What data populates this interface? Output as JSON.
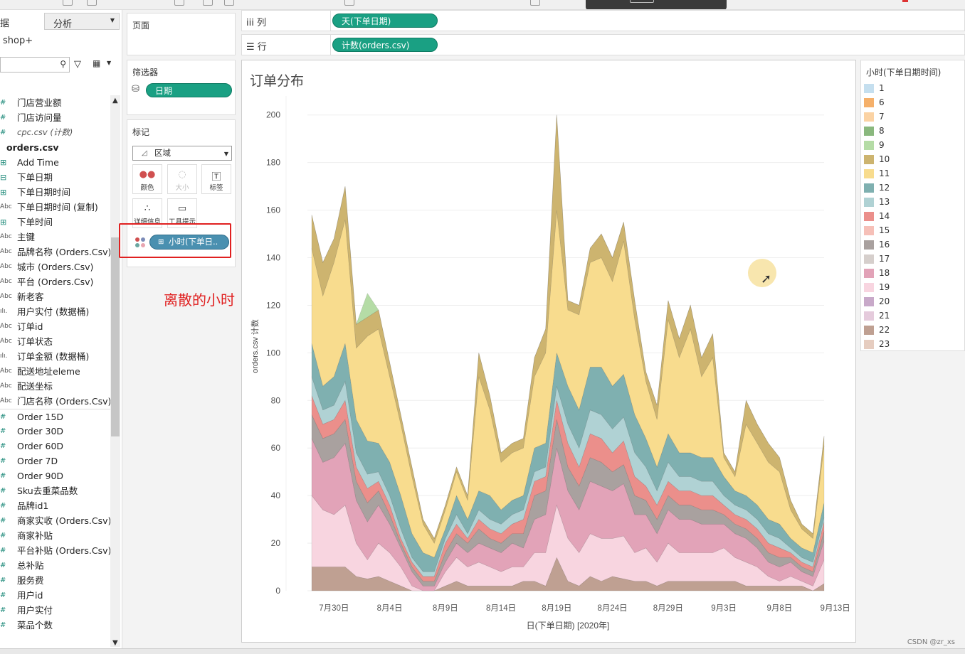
{
  "datapane": {
    "tab_data": "据",
    "tab_analysis": "分析",
    "datasource": "shop+",
    "fields": [
      {
        "icon": "#",
        "kind": "measure",
        "label": "门店营业额"
      },
      {
        "icon": "#",
        "kind": "measure",
        "label": "门店访问量"
      },
      {
        "icon": "#",
        "kind": "italic",
        "label": "cpc.csv (计数)"
      },
      {
        "icon": "",
        "kind": "header",
        "label": "orders.csv"
      },
      {
        "icon": "⊞",
        "kind": "dim",
        "label": "Add Time"
      },
      {
        "icon": "⊟",
        "kind": "dim",
        "label": "下单日期"
      },
      {
        "icon": "⊞",
        "kind": "dim",
        "label": "下单日期时间"
      },
      {
        "icon": "Abc",
        "kind": "abc",
        "label": "下单日期时间 (复制)"
      },
      {
        "icon": "⊞",
        "kind": "dim",
        "label": "下单时间"
      },
      {
        "icon": "Abc",
        "kind": "abc",
        "label": "主键"
      },
      {
        "icon": "Abc",
        "kind": "abc",
        "label": "品牌名称 (Orders.Csv)"
      },
      {
        "icon": "Abc",
        "kind": "abc",
        "label": "城市 (Orders.Csv)"
      },
      {
        "icon": "Abc",
        "kind": "abc",
        "label": "平台 (Orders.Csv)"
      },
      {
        "icon": "Abc",
        "kind": "abc",
        "label": "新老客"
      },
      {
        "icon": "ılı.",
        "kind": "abc",
        "label": "用户实付 (数据桶)"
      },
      {
        "icon": "Abc",
        "kind": "abc",
        "label": "订单id"
      },
      {
        "icon": "Abc",
        "kind": "abc",
        "label": "订单状态"
      },
      {
        "icon": "ılı.",
        "kind": "abc",
        "label": "订单金额 (数据桶)"
      },
      {
        "icon": "Abc",
        "kind": "abc",
        "label": "配送地址eleme"
      },
      {
        "icon": "Abc",
        "kind": "abc",
        "label": "配送坐标"
      },
      {
        "icon": "Abc",
        "kind": "abc",
        "label": "门店名称 (Orders.Csv)"
      },
      {
        "icon": "#",
        "kind": "measure-sep",
        "label": "Order 15D"
      },
      {
        "icon": "#",
        "kind": "measure",
        "label": "Order 30D"
      },
      {
        "icon": "#",
        "kind": "measure",
        "label": "Order 60D"
      },
      {
        "icon": "#",
        "kind": "measure",
        "label": "Order 7D"
      },
      {
        "icon": "#",
        "kind": "measure",
        "label": "Order 90D"
      },
      {
        "icon": "#",
        "kind": "measure",
        "label": "Sku去重菜品数"
      },
      {
        "icon": "#",
        "kind": "measure",
        "label": "品牌id1"
      },
      {
        "icon": "#",
        "kind": "measure",
        "label": "商家实收 (Orders.Csv)"
      },
      {
        "icon": "#",
        "kind": "measure",
        "label": "商家补贴"
      },
      {
        "icon": "#",
        "kind": "measure",
        "label": "平台补贴 (Orders.Csv)"
      },
      {
        "icon": "#",
        "kind": "measure",
        "label": "总补贴"
      },
      {
        "icon": "#",
        "kind": "measure",
        "label": "服务费"
      },
      {
        "icon": "#",
        "kind": "measure",
        "label": "用户id"
      },
      {
        "icon": "#",
        "kind": "measure",
        "label": "用户实付"
      },
      {
        "icon": "#",
        "kind": "measure",
        "label": "菜品个数"
      }
    ]
  },
  "shelves": {
    "pages_title": "页面",
    "filters_title": "筛选器",
    "filter_pill": "日期",
    "marks_title": "标记",
    "mark_type": "区域",
    "mark_buttons": {
      "color": "颜色",
      "size": "大小",
      "label": "标签",
      "detail": "详细信息",
      "tooltip": "工具提示"
    },
    "color_pill": "小时(下单日..",
    "annotation": "离散的小时",
    "columns_label": "列",
    "columns_pill": "天(下单日期)",
    "rows_label": "行",
    "rows_pill": "计数(orders.csv)"
  },
  "view": {
    "title": "订单分布",
    "ylabel": "orders.csv 计数",
    "xlabel": "日(下单日期) [2020年]",
    "yticks": [
      "0",
      "20",
      "40",
      "60",
      "80",
      "100",
      "120",
      "140",
      "160",
      "180",
      "200"
    ],
    "xticks": [
      "7月30日",
      "8月4日",
      "8月9日",
      "8月14日",
      "8月19日",
      "8月24日",
      "8月29日",
      "9月3日",
      "9月8日",
      "9月13日"
    ]
  },
  "legend": {
    "title": "小时(下单日期时间)",
    "items": [
      {
        "label": "1",
        "color": "#c5dfef"
      },
      {
        "label": "6",
        "color": "#f5b06a"
      },
      {
        "label": "7",
        "color": "#fbd3a4"
      },
      {
        "label": "8",
        "color": "#8ab87e"
      },
      {
        "label": "9",
        "color": "#b5dca6"
      },
      {
        "label": "10",
        "color": "#cdb46f"
      },
      {
        "label": "11",
        "color": "#f8dc8e"
      },
      {
        "label": "12",
        "color": "#7fb0b0"
      },
      {
        "label": "13",
        "color": "#b0d2d4"
      },
      {
        "label": "14",
        "color": "#eb8f8b"
      },
      {
        "label": "15",
        "color": "#f6c0b8"
      },
      {
        "label": "16",
        "color": "#a9a19f"
      },
      {
        "label": "17",
        "color": "#d6cfcc"
      },
      {
        "label": "18",
        "color": "#e2a3b8"
      },
      {
        "label": "19",
        "color": "#f8d5e0"
      },
      {
        "label": "20",
        "color": "#c8a9c9"
      },
      {
        "label": "21",
        "color": "#e5cbdc"
      },
      {
        "label": "22",
        "color": "#bfa092"
      },
      {
        "label": "23",
        "color": "#e6cdc0"
      }
    ]
  },
  "chart_data": {
    "type": "area",
    "title": "订单分布",
    "xlabel": "日(下单日期) [2020年]",
    "ylabel": "orders.csv 计数",
    "ylim": [
      0,
      205
    ],
    "x": [
      "7月28日",
      "7月29日",
      "7月30日",
      "7月31日",
      "8月1日",
      "8月2日",
      "8月3日",
      "8月4日",
      "8月5日",
      "8月6日",
      "8月7日",
      "8月8日",
      "8月9日",
      "8月10日",
      "8月11日",
      "8月12日",
      "8月13日",
      "8月14日",
      "8月15日",
      "8月16日",
      "8月17日",
      "8月18日",
      "8月19日",
      "8月20日",
      "8月21日",
      "8月22日",
      "8月23日",
      "8月24日",
      "8月25日",
      "8月26日",
      "8月27日",
      "8月28日",
      "8月29日",
      "8月30日",
      "8月31日",
      "9月1日",
      "9月2日",
      "9月3日",
      "9月4日",
      "9月5日",
      "9月6日",
      "9月7日",
      "9月8日",
      "9月9日",
      "9月10日",
      "9月11日",
      "9月12日",
      "9月13日",
      "9月14日"
    ],
    "stack_totals": [
      158,
      138,
      148,
      170,
      112,
      125,
      118,
      96,
      74,
      52,
      30,
      22,
      36,
      52,
      40,
      100,
      82,
      58,
      62,
      64,
      98,
      110,
      200,
      122,
      120,
      140,
      150,
      140,
      155,
      122,
      92,
      78,
      122,
      106,
      120,
      98,
      108,
      58,
      50,
      80,
      70,
      62,
      56,
      38,
      28,
      24,
      65,
      0,
      0
    ],
    "series": [
      {
        "name": "10",
        "values": [
          14,
          14,
          10,
          14,
          10,
          8,
          8,
          6,
          4,
          4,
          2,
          2,
          2,
          2,
          2,
          10,
          6,
          4,
          4,
          4,
          8,
          10,
          40,
          4,
          4,
          6,
          10,
          10,
          8,
          8,
          4,
          6,
          8,
          8,
          10,
          8,
          10,
          2,
          2,
          10,
          8,
          8,
          6,
          4,
          2,
          2,
          4,
          0,
          0
        ]
      },
      {
        "name": "11",
        "values": [
          40,
          38,
          48,
          52,
          30,
          44,
          48,
          36,
          30,
          24,
          12,
          6,
          8,
          10,
          8,
          48,
          36,
          20,
          20,
          20,
          30,
          38,
          60,
          32,
          40,
          44,
          46,
          44,
          56,
          40,
          24,
          20,
          48,
          40,
          52,
          34,
          42,
          8,
          6,
          30,
          26,
          24,
          22,
          12,
          8,
          6,
          24,
          0,
          0
        ]
      },
      {
        "name": "12",
        "values": [
          14,
          10,
          12,
          16,
          14,
          14,
          12,
          14,
          14,
          10,
          8,
          6,
          4,
          8,
          6,
          8,
          10,
          6,
          6,
          6,
          10,
          10,
          14,
          16,
          16,
          18,
          20,
          18,
          18,
          16,
          12,
          10,
          12,
          10,
          10,
          10,
          10,
          8,
          6,
          6,
          6,
          6,
          6,
          4,
          4,
          4,
          6,
          0,
          0
        ]
      },
      {
        "name": "13",
        "values": [
          8,
          6,
          6,
          8,
          6,
          6,
          4,
          4,
          4,
          2,
          2,
          2,
          2,
          4,
          2,
          4,
          4,
          4,
          4,
          4,
          4,
          4,
          6,
          8,
          8,
          10,
          10,
          10,
          10,
          10,
          8,
          6,
          8,
          6,
          6,
          6,
          6,
          4,
          4,
          4,
          4,
          4,
          4,
          2,
          2,
          2,
          2,
          0,
          0
        ]
      },
      {
        "name": "14",
        "values": [
          8,
          6,
          6,
          8,
          6,
          6,
          4,
          4,
          2,
          2,
          2,
          2,
          4,
          4,
          2,
          4,
          4,
          4,
          4,
          6,
          6,
          6,
          8,
          10,
          8,
          10,
          10,
          8,
          10,
          8,
          6,
          6,
          6,
          6,
          6,
          6,
          6,
          4,
          4,
          4,
          4,
          4,
          4,
          2,
          2,
          2,
          4,
          0,
          0
        ]
      },
      {
        "name": "16",
        "values": [
          10,
          10,
          10,
          10,
          8,
          8,
          6,
          4,
          2,
          2,
          2,
          2,
          4,
          4,
          4,
          6,
          4,
          4,
          4,
          6,
          10,
          10,
          12,
          10,
          10,
          10,
          10,
          8,
          8,
          8,
          6,
          6,
          6,
          6,
          6,
          6,
          6,
          4,
          4,
          4,
          4,
          4,
          4,
          2,
          2,
          2,
          4,
          0,
          0
        ]
      },
      {
        "name": "18",
        "values": [
          24,
          20,
          24,
          26,
          18,
          16,
          16,
          12,
          8,
          6,
          2,
          2,
          4,
          6,
          6,
          8,
          8,
          8,
          10,
          8,
          14,
          16,
          24,
          20,
          18,
          22,
          22,
          20,
          22,
          16,
          14,
          12,
          14,
          14,
          14,
          12,
          12,
          10,
          10,
          10,
          8,
          6,
          6,
          6,
          4,
          4,
          8,
          0,
          0
        ]
      },
      {
        "name": "19",
        "values": [
          30,
          24,
          22,
          26,
          14,
          8,
          14,
          12,
          8,
          2,
          0,
          0,
          6,
          10,
          8,
          10,
          8,
          6,
          8,
          6,
          12,
          14,
          22,
          18,
          14,
          18,
          18,
          16,
          18,
          12,
          14,
          10,
          16,
          12,
          12,
          12,
          12,
          14,
          10,
          10,
          8,
          4,
          2,
          4,
          2,
          2,
          10,
          0,
          0
        ]
      },
      {
        "name": "22",
        "values": [
          10,
          10,
          10,
          10,
          6,
          5,
          6,
          4,
          2,
          0,
          0,
          0,
          2,
          4,
          2,
          2,
          2,
          2,
          2,
          4,
          4,
          2,
          14,
          4,
          2,
          6,
          4,
          6,
          5,
          4,
          4,
          2,
          4,
          4,
          4,
          4,
          4,
          4,
          4,
          2,
          2,
          2,
          2,
          2,
          2,
          0,
          3,
          0,
          0
        ]
      }
    ]
  }
}
